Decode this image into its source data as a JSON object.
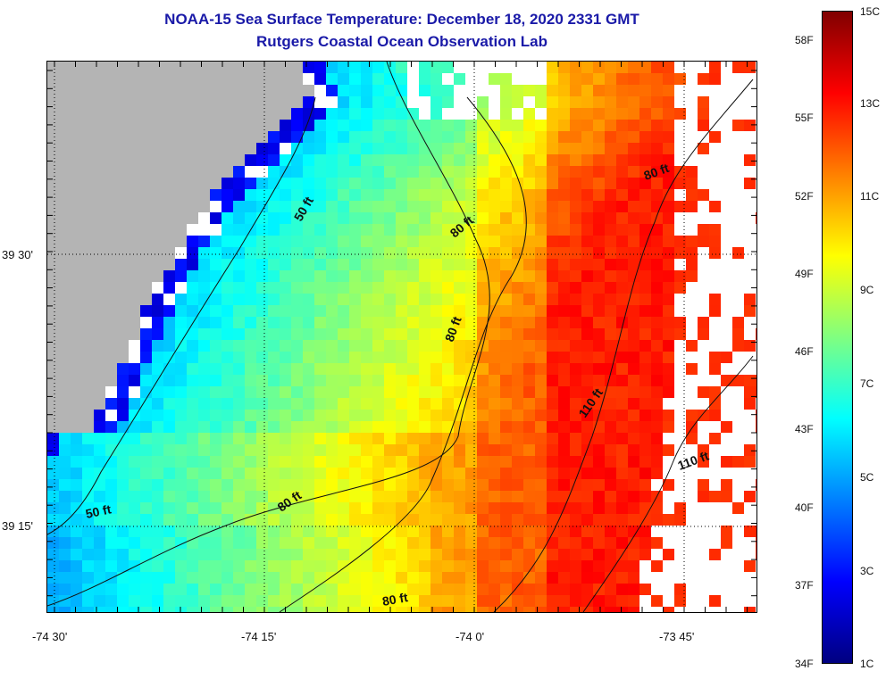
{
  "header": {
    "title": "NOAA-15 Sea Surface Temperature:  December 18, 2020 2331 GMT",
    "subtitle": "Rutgers Coastal Ocean Observation Lab"
  },
  "map": {
    "y_tick_labels": [
      "39 30'",
      "39 15'"
    ],
    "x_tick_labels": [
      "-74 30'",
      "-74 15'",
      "-74 0'",
      "-73 45'"
    ],
    "contour_labels": [
      "50 ft",
      "50 ft",
      "80 ft",
      "80 ft",
      "80 ft",
      "80 ft",
      "80 ft",
      "110 ft",
      "110 ft"
    ],
    "colors": {
      "land": "#b4b4b4",
      "no_data": "#ffffff",
      "cold": "#0a14b4",
      "mid": "#8fe07a",
      "warm": "#f5a024",
      "grid": "#000000"
    }
  },
  "colorbar": {
    "celsius_labels": [
      "15C",
      "13C",
      "11C",
      "9C",
      "7C",
      "5C",
      "3C",
      "1C"
    ],
    "fahrenheit_labels": [
      "58F",
      "55F",
      "52F",
      "49F",
      "46F",
      "43F",
      "40F",
      "37F",
      "34F"
    ],
    "colors": [
      "#800000",
      "#ff0000",
      "#ff8000",
      "#ffff00",
      "#80ff80",
      "#00ffff",
      "#0080ff",
      "#0000ff",
      "#000080"
    ]
  }
}
